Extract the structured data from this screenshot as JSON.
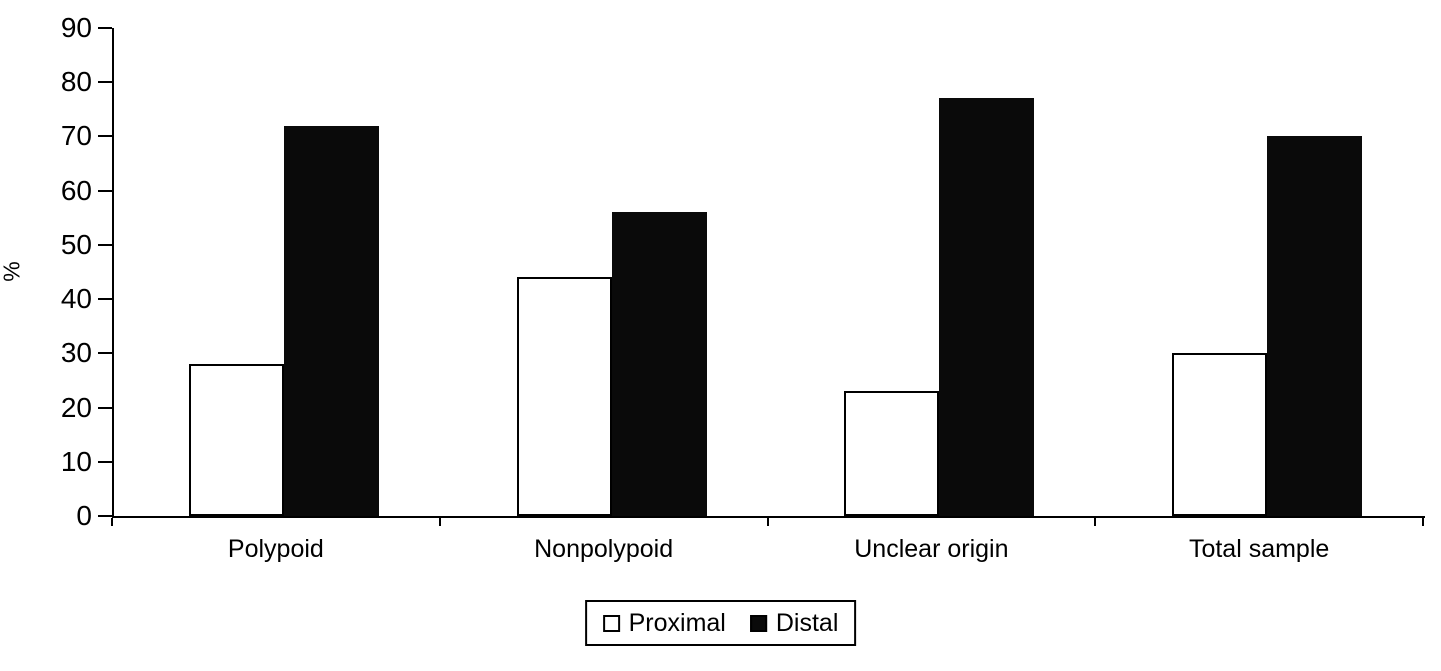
{
  "chart_data": {
    "type": "bar",
    "title": "",
    "xlabel": "",
    "ylabel": "%",
    "ylim": [
      0,
      90
    ],
    "ytick_step": 10,
    "yticks": [
      0,
      10,
      20,
      30,
      40,
      50,
      60,
      70,
      80,
      90
    ],
    "grid": false,
    "legend_position": "bottom-center",
    "categories": [
      "Polypoid",
      "Nonpolypoid",
      "Unclear origin",
      "Total sample"
    ],
    "series": [
      {
        "name": "Proximal",
        "fill": "#ffffff",
        "border": "#000000",
        "values": [
          28,
          44,
          23,
          30
        ]
      },
      {
        "name": "Distal",
        "fill": "#0a0a0a",
        "border": "#0a0a0a",
        "values": [
          72,
          56,
          77,
          70
        ]
      }
    ]
  }
}
